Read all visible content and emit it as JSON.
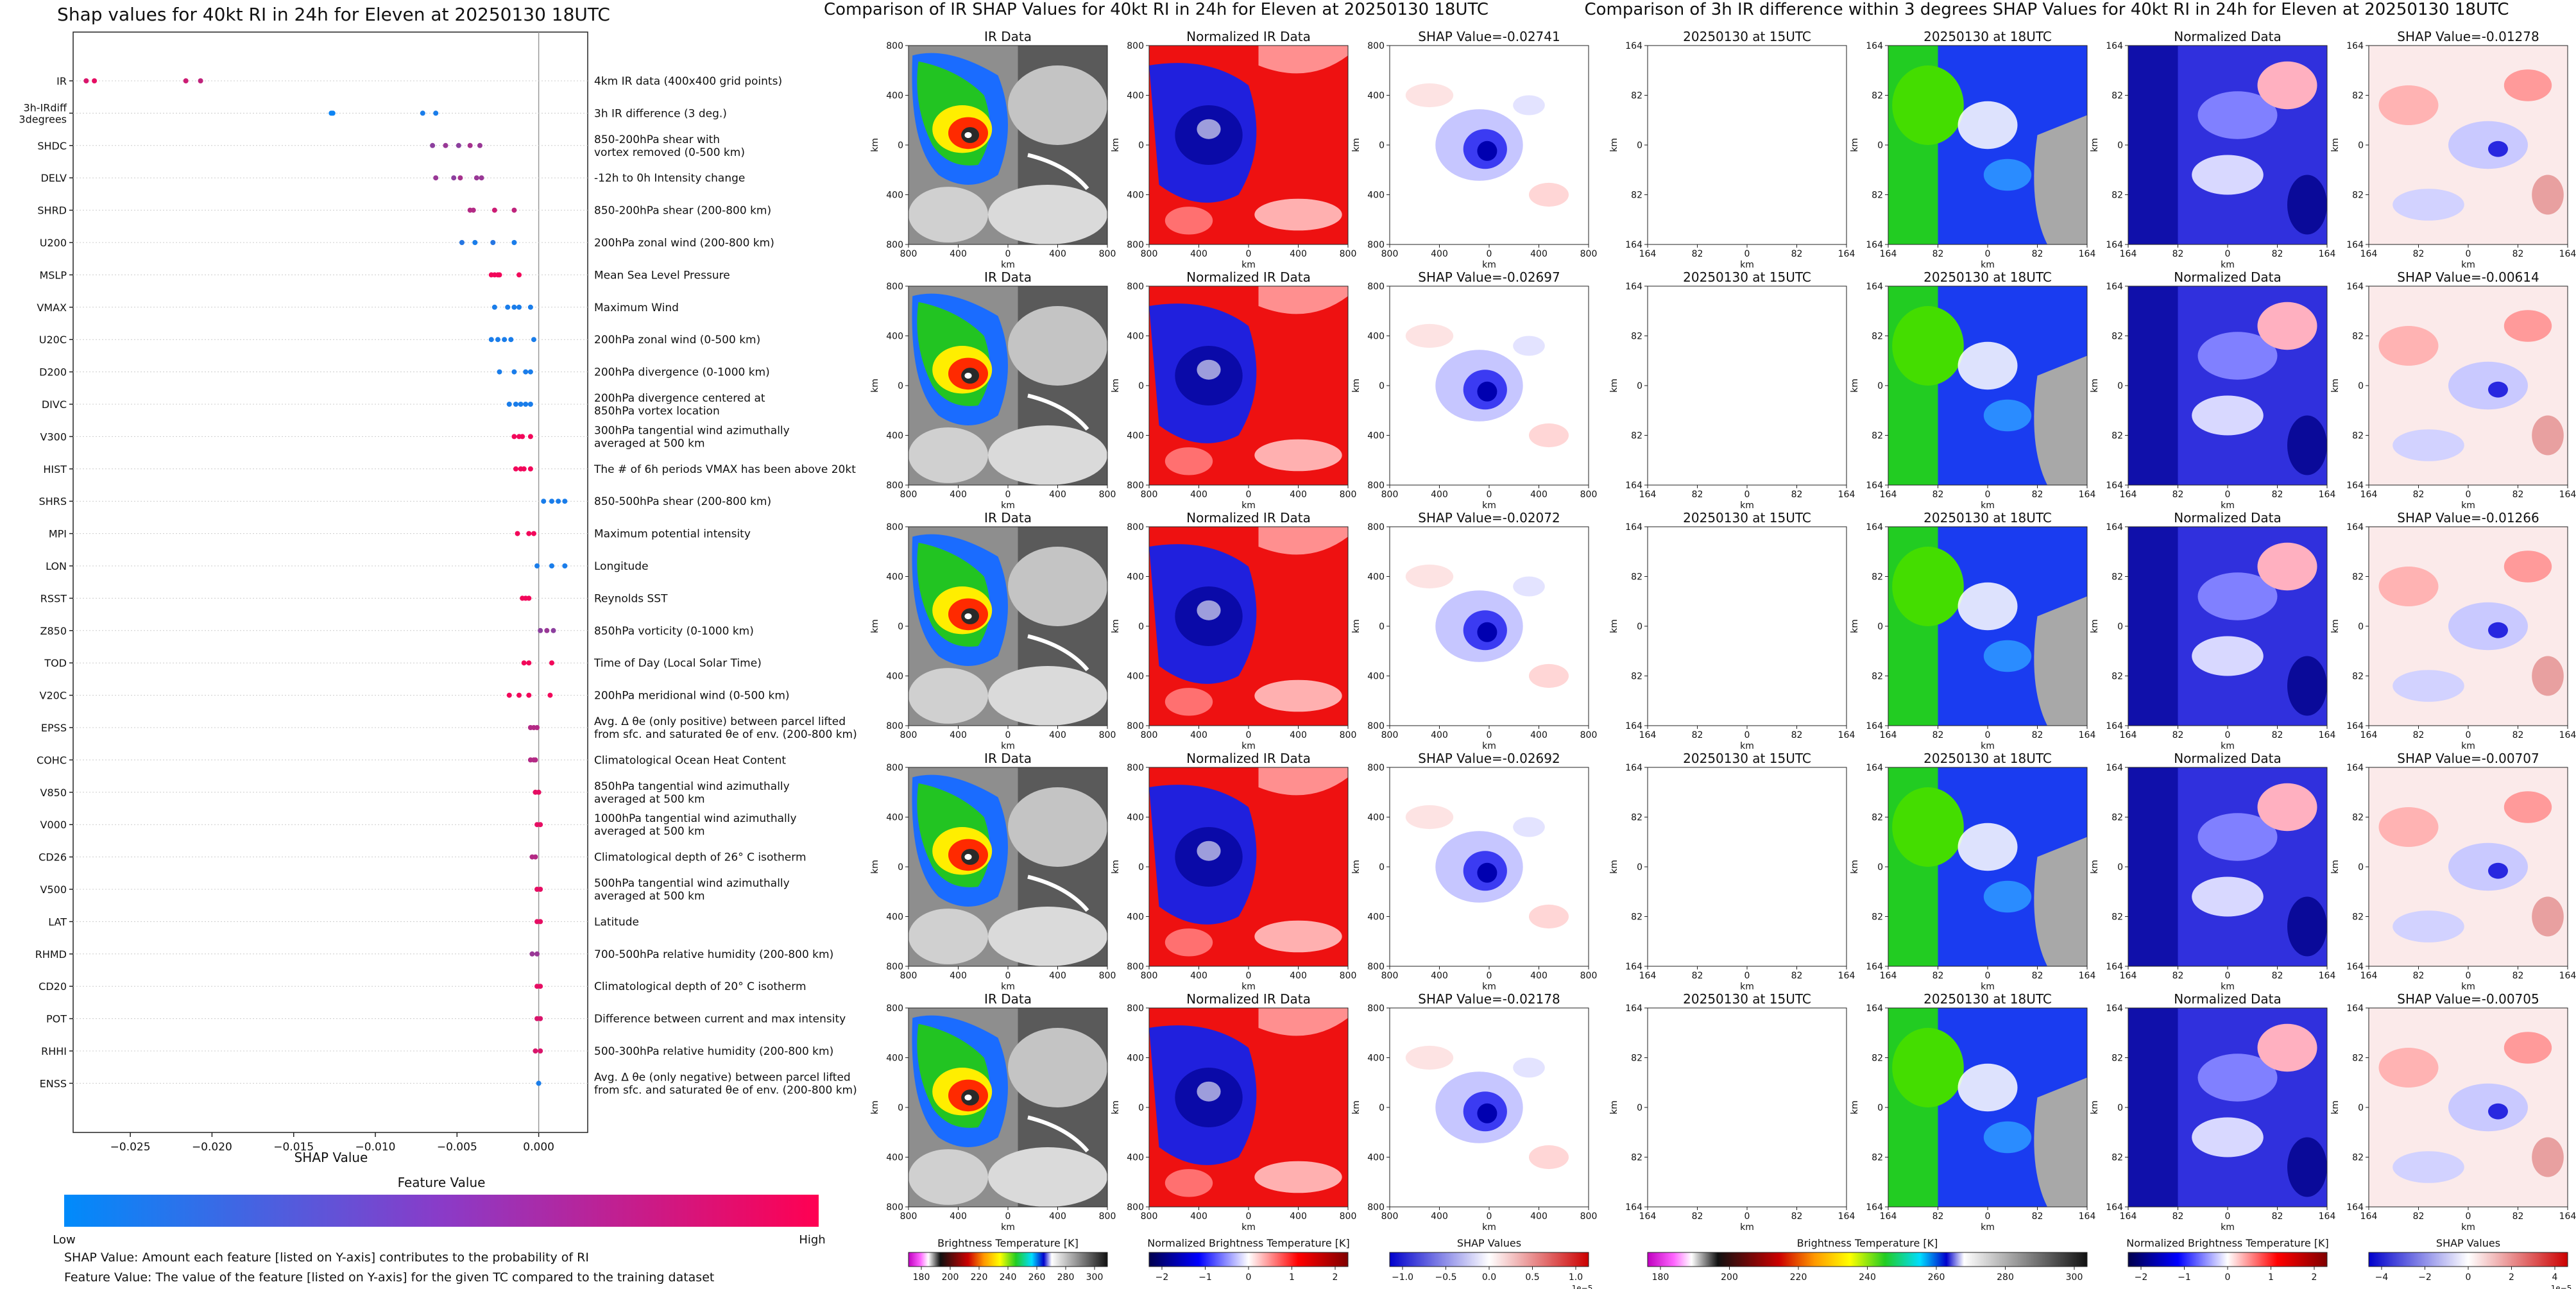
{
  "left_panel": {
    "title": "Shap values for 40kt RI in 24h for Eleven at 20250130 18UTC",
    "xlabel": "SHAP Value",
    "feature_value_label": "Feature Value",
    "low_label": "Low",
    "high_label": "High",
    "note_1": "SHAP Value: Amount each feature [listed on Y-axis] contributes to the probability of RI",
    "note_2": "Feature Value: The value of the feature [listed on Y-axis] for the given TC compared to the training dataset",
    "gradient_colors": [
      "#008bfb",
      "#7f3fcc",
      "#ff0052"
    ]
  },
  "chart_data": [
    {
      "type": "scatter",
      "title": "Shap values for 40kt RI in 24h for Eleven at 20250130 18UTC",
      "xlabel": "SHAP Value",
      "xlim": [
        -0.0285,
        0.003
      ],
      "xticks": [
        -0.025,
        -0.02,
        -0.015,
        -0.01,
        -0.005,
        0.0
      ],
      "xtick_labels": [
        "−0.025",
        "−0.020",
        "−0.015",
        "−0.010",
        "−0.005",
        "0.000"
      ],
      "color_scale": [
        "#008bfb",
        "#ff0052"
      ],
      "features": [
        {
          "code": "IR",
          "desc": [
            "4km IR data (400x400 grid points)"
          ],
          "shap": [
            -0.0277,
            -0.0272,
            -0.0216,
            -0.0207
          ],
          "fv": [
            0.85,
            0.9,
            0.8,
            0.75
          ]
        },
        {
          "code": "3h-IRdiff\n3degrees",
          "desc": [
            "3h IR difference (3 deg.)"
          ],
          "shap": [
            -0.0127,
            -0.0126,
            -0.0071,
            -0.0063
          ],
          "fv": [
            0.05,
            0.05,
            0.1,
            0.1
          ]
        },
        {
          "code": "SHDC",
          "desc": [
            "850-200hPa shear with",
            "vortex removed (0-500 km)"
          ],
          "shap": [
            -0.0065,
            -0.0057,
            -0.0049,
            -0.0042,
            -0.0036
          ],
          "fv": [
            0.55,
            0.6,
            0.55,
            0.65,
            0.6
          ]
        },
        {
          "code": "DELV",
          "desc": [
            "-12h to 0h Intensity change"
          ],
          "shap": [
            -0.0063,
            -0.0052,
            -0.0048,
            -0.0038,
            -0.0035
          ],
          "fv": [
            0.6,
            0.55,
            0.65,
            0.6,
            0.6
          ]
        },
        {
          "code": "SHRD",
          "desc": [
            "850-200hPa shear (200-800 km)"
          ],
          "shap": [
            -0.0042,
            -0.004,
            -0.0027,
            -0.0015
          ],
          "fv": [
            0.7,
            0.7,
            0.8,
            0.75
          ]
        },
        {
          "code": "U200",
          "desc": [
            "200hPa zonal wind (200-800 km)"
          ],
          "shap": [
            -0.0047,
            -0.0039,
            -0.0028,
            -0.0015
          ],
          "fv": [
            0.15,
            0.1,
            0.15,
            0.1
          ]
        },
        {
          "code": "MSLP",
          "desc": [
            "Mean Sea Level Pressure"
          ],
          "shap": [
            -0.0029,
            -0.0027,
            -0.0025,
            -0.0024,
            -0.0012
          ],
          "fv": [
            0.95,
            0.95,
            0.95,
            0.95,
            0.95
          ]
        },
        {
          "code": "VMAX",
          "desc": [
            "Maximum Wind"
          ],
          "shap": [
            -0.0027,
            -0.0019,
            -0.0015,
            -0.0012,
            -0.0005
          ],
          "fv": [
            0.1,
            0.1,
            0.1,
            0.1,
            0.1
          ]
        },
        {
          "code": "U20C",
          "desc": [
            "200hPa zonal wind (0-500 km)"
          ],
          "shap": [
            -0.0029,
            -0.0025,
            -0.0021,
            -0.0017,
            -0.0003
          ],
          "fv": [
            0.1,
            0.1,
            0.1,
            0.1,
            0.1
          ]
        },
        {
          "code": "D200",
          "desc": [
            "200hPa divergence (0-1000 km)"
          ],
          "shap": [
            -0.0024,
            -0.0015,
            -0.0008,
            -0.0005
          ],
          "fv": [
            0.1,
            0.1,
            0.1,
            0.1
          ]
        },
        {
          "code": "DIVC",
          "desc": [
            "200hPa divergence centered at",
            "850hPa vortex location"
          ],
          "shap": [
            -0.0018,
            -0.0014,
            -0.0011,
            -0.0008,
            -0.0005
          ],
          "fv": [
            0.1,
            0.1,
            0.1,
            0.1,
            0.1
          ]
        },
        {
          "code": "V300",
          "desc": [
            "300hPa tangential wind azimuthally",
            "averaged at 500 km"
          ],
          "shap": [
            -0.0015,
            -0.0012,
            -0.001,
            -0.0005
          ],
          "fv": [
            0.95,
            0.95,
            0.95,
            0.95
          ]
        },
        {
          "code": "HIST",
          "desc": [
            "The # of 6h periods VMAX has been above 20kt"
          ],
          "shap": [
            -0.0014,
            -0.0011,
            -0.0009,
            -0.0005
          ],
          "fv": [
            0.95,
            0.95,
            0.95,
            0.95
          ]
        },
        {
          "code": "SHRS",
          "desc": [
            "850-500hPa shear (200-800 km)"
          ],
          "shap": [
            0.0003,
            0.0008,
            0.0012,
            0.0016
          ],
          "fv": [
            0.1,
            0.1,
            0.1,
            0.1
          ]
        },
        {
          "code": "MPI",
          "desc": [
            "Maximum potential intensity"
          ],
          "shap": [
            -0.0013,
            -0.0006,
            -0.0003
          ],
          "fv": [
            0.95,
            0.95,
            0.95
          ]
        },
        {
          "code": "LON",
          "desc": [
            "Longitude"
          ],
          "shap": [
            -0.0001,
            0.0008,
            0.0016
          ],
          "fv": [
            0.1,
            0.1,
            0.1
          ]
        },
        {
          "code": "RSST",
          "desc": [
            "Reynolds SST"
          ],
          "shap": [
            -0.001,
            -0.0008,
            -0.0006
          ],
          "fv": [
            0.95,
            0.95,
            0.95
          ]
        },
        {
          "code": "Z850",
          "desc": [
            "850hPa vorticity (0-1000 km)"
          ],
          "shap": [
            0.0001,
            0.0005,
            0.0009
          ],
          "fv": [
            0.55,
            0.6,
            0.55
          ]
        },
        {
          "code": "TOD",
          "desc": [
            "Time of Day (Local Solar Time)"
          ],
          "shap": [
            -0.0009,
            -0.0006,
            0.0008
          ],
          "fv": [
            0.95,
            0.95,
            0.95
          ]
        },
        {
          "code": "V20C",
          "desc": [
            "200hPa meridional wind (0-500 km)"
          ],
          "shap": [
            -0.0018,
            -0.0012,
            -0.0006,
            0.0007
          ],
          "fv": [
            0.95,
            0.95,
            0.95,
            0.95
          ]
        },
        {
          "code": "EPSS",
          "desc": [
            "Avg. Δ θe (only positive) between parcel lifted",
            "from sfc. and saturated θe of env. (200-800 km)"
          ],
          "shap": [
            -0.0005,
            -0.0003,
            -0.0001
          ],
          "fv": [
            0.7,
            0.7,
            0.7
          ]
        },
        {
          "code": "COHC",
          "desc": [
            "Climatological Ocean Heat Content"
          ],
          "shap": [
            -0.0005,
            -0.0003,
            -0.0002
          ],
          "fv": [
            0.7,
            0.7,
            0.7
          ]
        },
        {
          "code": "V850",
          "desc": [
            "850hPa tangential wind azimuthally",
            "averaged at 500 km"
          ],
          "shap": [
            -0.0002,
            0.0
          ],
          "fv": [
            0.9,
            0.9
          ]
        },
        {
          "code": "V000",
          "desc": [
            "1000hPa tangential wind azimuthally",
            "averaged at 500 km"
          ],
          "shap": [
            -0.0001,
            0.0001
          ],
          "fv": [
            0.9,
            0.9
          ]
        },
        {
          "code": "CD26",
          "desc": [
            "Climatological depth of 26° C isotherm"
          ],
          "shap": [
            -0.0004,
            -0.0002
          ],
          "fv": [
            0.7,
            0.7
          ]
        },
        {
          "code": "V500",
          "desc": [
            "500hPa tangential wind azimuthally",
            "averaged at 500 km"
          ],
          "shap": [
            -0.0001,
            0.0001
          ],
          "fv": [
            0.9,
            0.9
          ]
        },
        {
          "code": "LAT",
          "desc": [
            "Latitude"
          ],
          "shap": [
            -0.0001,
            0.0001
          ],
          "fv": [
            0.9,
            0.9
          ]
        },
        {
          "code": "RHMD",
          "desc": [
            "700-500hPa relative humidity (200-800 km)"
          ],
          "shap": [
            -0.0004,
            -0.0001
          ],
          "fv": [
            0.6,
            0.6
          ]
        },
        {
          "code": "CD20",
          "desc": [
            "Climatological depth of 20° C isotherm"
          ],
          "shap": [
            -0.0001,
            0.0001
          ],
          "fv": [
            0.9,
            0.9
          ]
        },
        {
          "code": "POT",
          "desc": [
            "Difference between current and max intensity"
          ],
          "shap": [
            -0.0001,
            0.0001
          ],
          "fv": [
            0.85,
            0.85
          ]
        },
        {
          "code": "RHHI",
          "desc": [
            "500-300hPa relative humidity (200-800 km)"
          ],
          "shap": [
            -0.0002,
            0.0001
          ],
          "fv": [
            0.85,
            0.85
          ]
        },
        {
          "code": "ENSS",
          "desc": [
            "Avg. Δ θe (only negative) between parcel lifted",
            "from sfc. and saturated θe of env. (200-800 km)"
          ],
          "shap": [
            0.0
          ],
          "fv": [
            0.1
          ]
        }
      ]
    },
    {
      "type": "heatmap",
      "title": "Comparison of IR SHAP Values for 40kt RI in 24h for Eleven at 20250130 18UTC",
      "columns": [
        "IR Data",
        "Normalized IR Data",
        "SHAP Value"
      ],
      "shap_values": [
        "-0.02741",
        "-0.02697",
        "-0.02072",
        "-0.02692",
        "-0.02178"
      ],
      "xlabel": "km",
      "ylabel": "km",
      "x_ticks": [
        "800",
        "400",
        "0",
        "400",
        "800"
      ],
      "y_ticks": [
        "800",
        "400",
        "0",
        "400",
        "800"
      ],
      "colorbars": [
        {
          "label": "Brightness Temperature [K]",
          "ticks": [
            "180",
            "200",
            "220",
            "240",
            "260",
            "280",
            "300"
          ]
        },
        {
          "label": "Normalized Brightness Temperature [K]",
          "ticks": [
            "−2",
            "−1",
            "0",
            "1",
            "2"
          ]
        },
        {
          "label": "SHAP Values",
          "ticks": [
            "−1.0",
            "−0.5",
            "0.0",
            "0.5",
            "1.0"
          ],
          "exponent": "1e−5"
        }
      ]
    },
    {
      "type": "heatmap",
      "title": "Comparison of 3h IR difference within 3 degrees SHAP Values for 40kt RI in 24h for Eleven at 20250130 18UTC",
      "columns": [
        "20250130 at 15UTC",
        "20250130 at 18UTC",
        "Normalized Data",
        "SHAP Value"
      ],
      "shap_values": [
        "-0.01278",
        "-0.00614",
        "-0.01266",
        "-0.00707",
        "-0.00705"
      ],
      "xlabel": "km",
      "ylabel": "km",
      "x_ticks": [
        "164",
        "82",
        "0",
        "82",
        "164"
      ],
      "y_ticks": [
        "164",
        "82",
        "0",
        "82",
        "164"
      ],
      "colorbars": [
        {
          "label": "Brightness Temperature [K]",
          "ticks": [
            "180",
            "200",
            "220",
            "240",
            "260",
            "280",
            "300"
          ]
        },
        {
          "label": "Normalized Brightness Temperature [K]",
          "ticks": [
            "−2",
            "−1",
            "0",
            "1",
            "2"
          ]
        },
        {
          "label": "SHAP Values",
          "ticks": [
            "−4",
            "−2",
            "0",
            "2",
            "4"
          ],
          "exponent": "1e−5"
        }
      ]
    }
  ],
  "colors": {
    "ir_gray_dark": "#3d3d3d",
    "ir_gray_light": "#c8c8c8",
    "norm_red": "#ee1111",
    "norm_blue": "#1a1acc",
    "shap_white": "#ffffff",
    "green": "#18d018",
    "cyan": "#00e0ff"
  }
}
